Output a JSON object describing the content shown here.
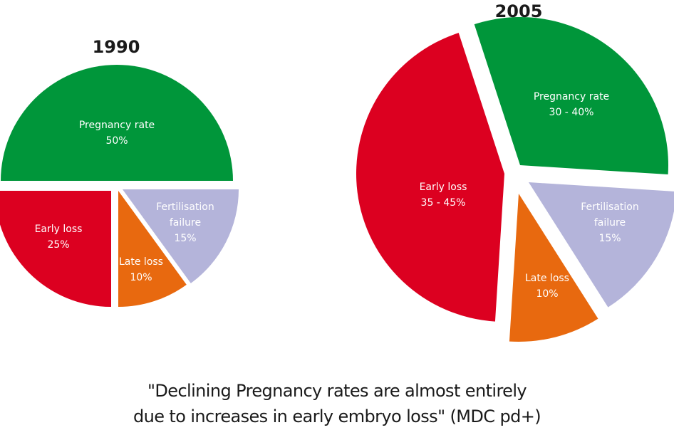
{
  "chart_data": [
    {
      "type": "pie",
      "title": "1990",
      "slices": [
        {
          "label": "Pregnancy rate",
          "value_text": "50%",
          "value": 50,
          "color": "#00963a"
        },
        {
          "label": "Early loss",
          "value_text": "25%",
          "value": 25,
          "color": "#dc0020"
        },
        {
          "label": "Late loss",
          "value_text": "10%",
          "value": 10,
          "color": "#e8690f"
        },
        {
          "label": "Fertilisation failure",
          "value_text": "15%",
          "value": 15,
          "color": "#b4b4da"
        }
      ],
      "exploded": true
    },
    {
      "type": "pie",
      "title": "2005",
      "slices": [
        {
          "label": "Pregnancy rate",
          "value_text": "30 - 40%",
          "value": 31,
          "color": "#00963a"
        },
        {
          "label": "Early loss",
          "value_text": "35 - 45%",
          "value": 44,
          "color": "#dc0020"
        },
        {
          "label": "Late loss",
          "value_text": "10%",
          "value": 10,
          "color": "#e8690f"
        },
        {
          "label": "Fertilisation failure",
          "value_text": "15%",
          "value": 15,
          "color": "#b4b4da"
        }
      ],
      "exploded": true
    }
  ],
  "caption": {
    "line1": "\"Declining Pregnancy rates are almost entirely",
    "line2": "due to increases in early embryo loss\" (MDC pd+)"
  }
}
